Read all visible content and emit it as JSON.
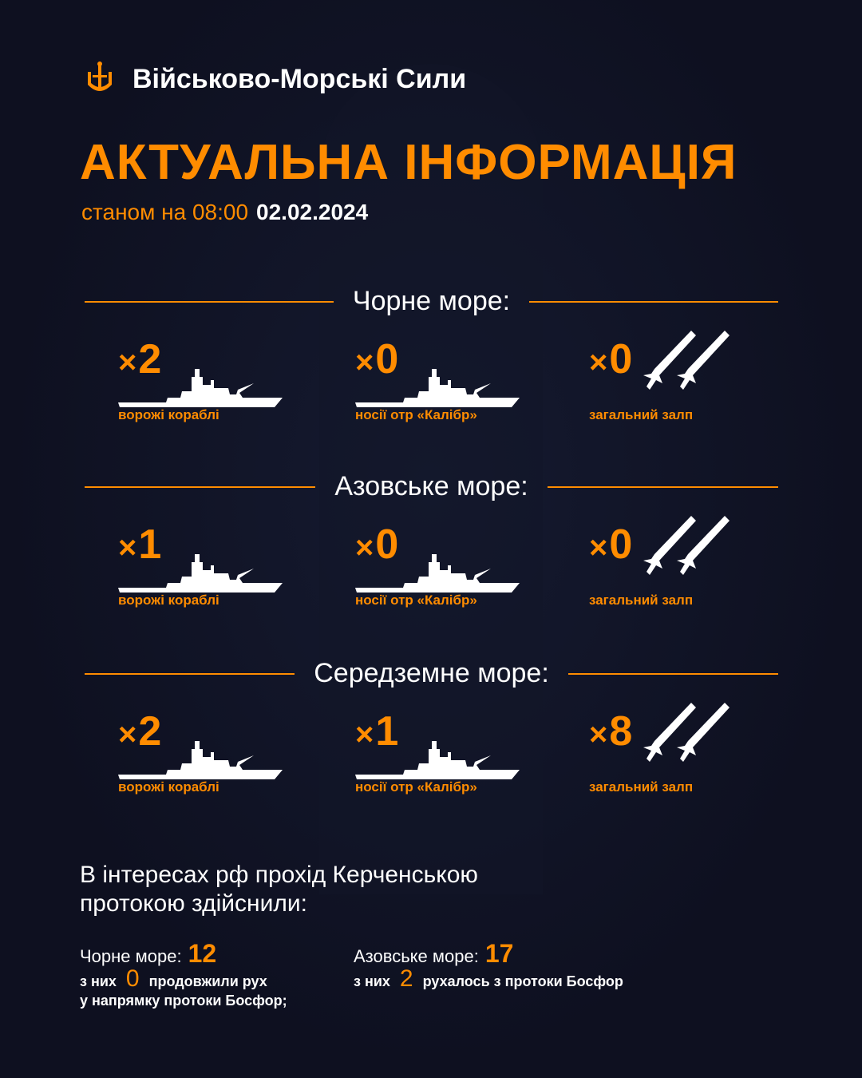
{
  "header": {
    "organization": "Військово-Морські Сили",
    "logo_icon": "trident-anchor-icon"
  },
  "title": "АКТУАЛЬНА ІНФОРМАЦІЯ",
  "as_of": {
    "label": "станом на 08:00",
    "date": "02.02.2024"
  },
  "colors": {
    "accent": "#ff8c00",
    "background": "#0e1020",
    "text": "#ffffff"
  },
  "seas": [
    {
      "name": "Чорне море:",
      "items": [
        {
          "prefix": "×",
          "value": "2",
          "label": "ворожі кораблі",
          "icon": "ship-icon"
        },
        {
          "prefix": "×",
          "value": "0",
          "label": "носії отр «Калібр»",
          "icon": "ship-icon"
        },
        {
          "prefix": "×",
          "value": "0",
          "label": "загальний залп",
          "icon": "missiles-icon"
        }
      ]
    },
    {
      "name": "Азовське море:",
      "items": [
        {
          "prefix": "×",
          "value": "1",
          "label": "ворожі кораблі",
          "icon": "ship-icon"
        },
        {
          "prefix": "×",
          "value": "0",
          "label": "носії отр «Калібр»",
          "icon": "ship-icon"
        },
        {
          "prefix": "×",
          "value": "0",
          "label": "загальний залп",
          "icon": "missiles-icon"
        }
      ]
    },
    {
      "name": "Середземне море:",
      "items": [
        {
          "prefix": "×",
          "value": "2",
          "label": "ворожі кораблі",
          "icon": "ship-icon"
        },
        {
          "prefix": "×",
          "value": "1",
          "label": "носії отр «Калібр»",
          "icon": "ship-icon"
        },
        {
          "prefix": "×",
          "value": "8",
          "label": "загальний залп",
          "icon": "missiles-icon"
        }
      ]
    }
  ],
  "kerch": {
    "heading": "В інтересах рф прохід Керченською протокою здійснили:",
    "black": {
      "label": "Чорне море:",
      "value": "12",
      "sub_prefix": "з них",
      "sub_value": "0",
      "sub_text": "продовжили рух",
      "sub_text2": "у напрямку протоки Босфор;"
    },
    "azov": {
      "label": "Азовське море:",
      "value": "17",
      "sub_prefix": "з них",
      "sub_value": "2",
      "sub_text": "рухалось з протоки Босфор"
    }
  }
}
